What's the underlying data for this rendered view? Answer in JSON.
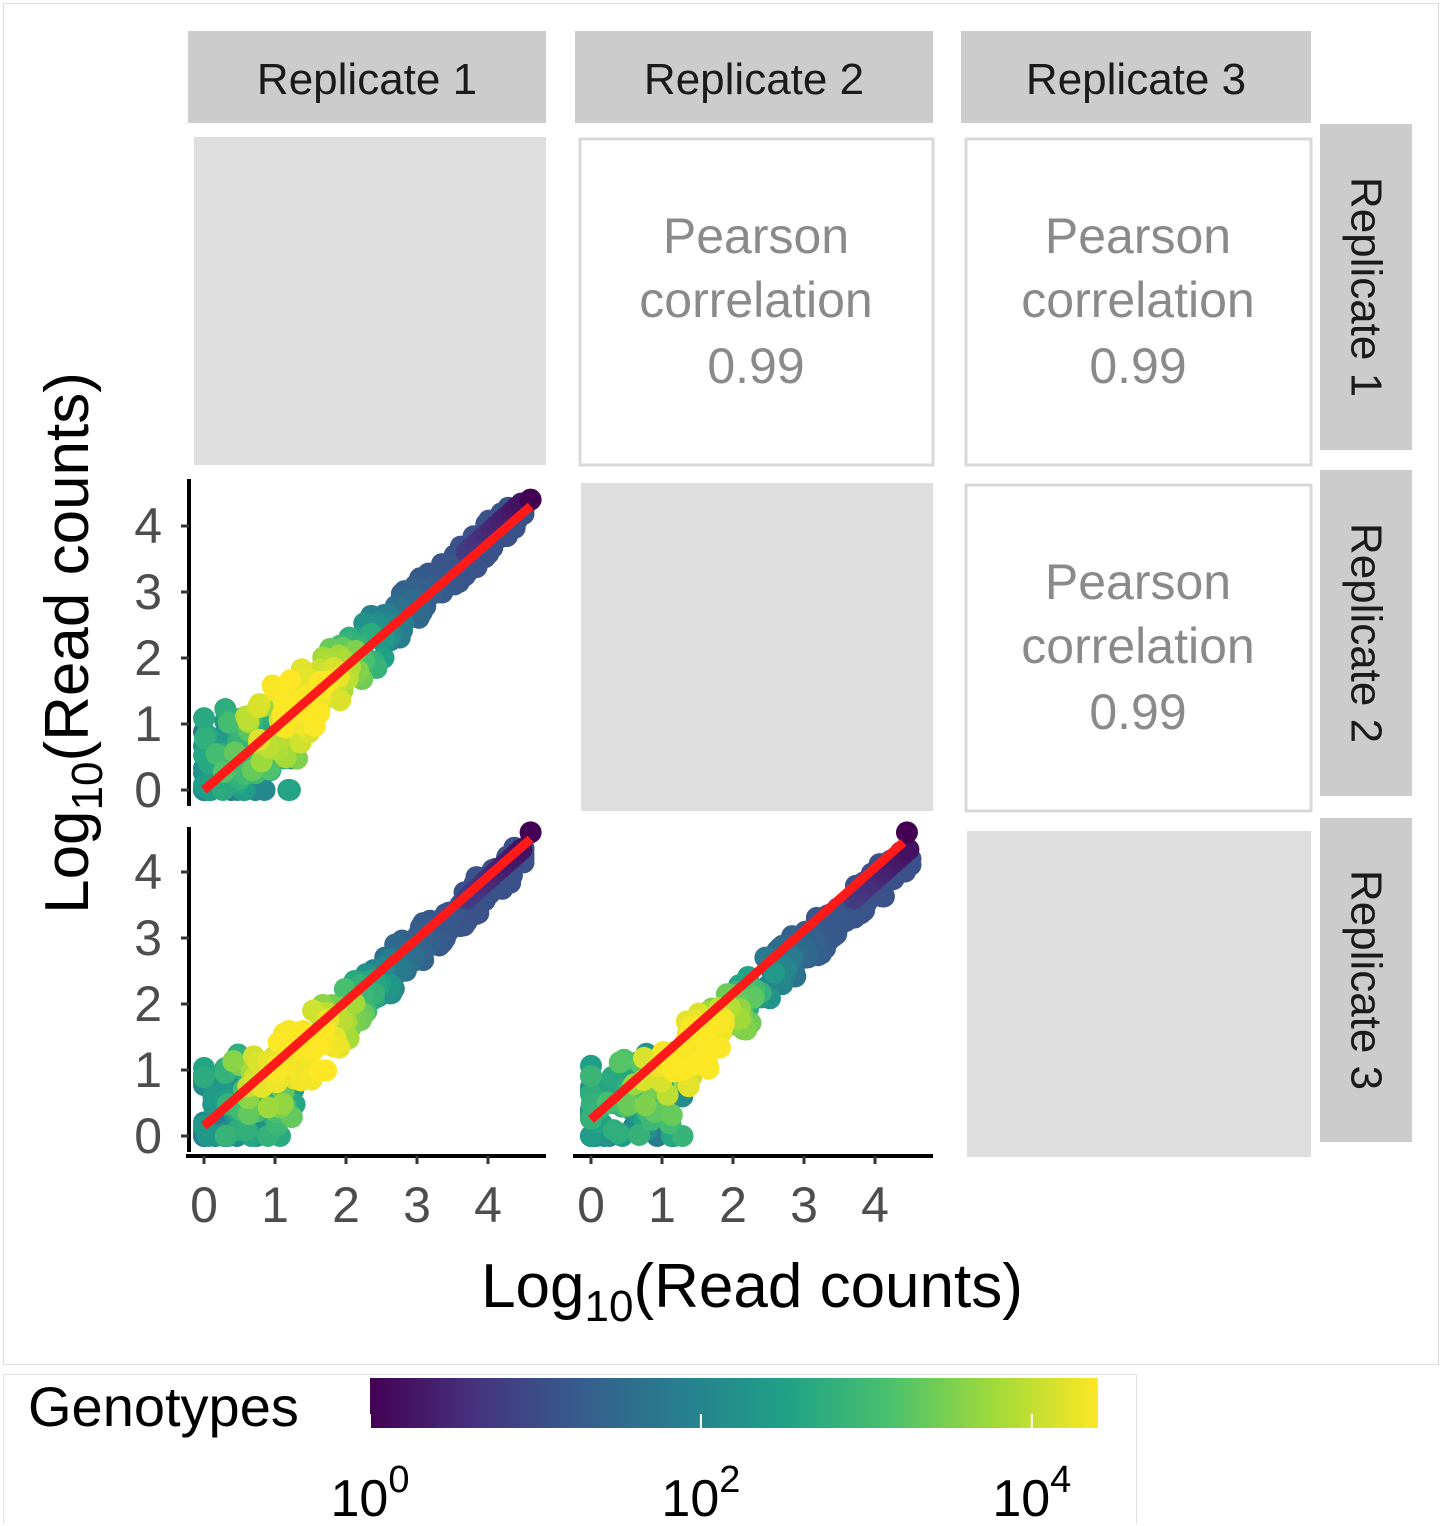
{
  "chart_data": {
    "type": "scatter",
    "layout": "pairs-matrix",
    "xlabel": "Log",
    "xlabel_sub": "10",
    "xlabel_rest": "(Read counts)",
    "ylabel": "Log",
    "ylabel_sub": "10",
    "ylabel_rest": "(Read counts)",
    "column_strips": [
      "Replicate 1",
      "Replicate 2",
      "Replicate 3"
    ],
    "row_strips": [
      "Replicate 1",
      "Replicate 2",
      "Replicate 3"
    ],
    "xlim": [
      -0.2,
      4.8
    ],
    "ylim": [
      -0.2,
      4.8
    ],
    "xticks": [
      0,
      1,
      2,
      3,
      4
    ],
    "yticks": [
      0,
      1,
      2,
      3,
      4
    ],
    "correlation_panels": [
      {
        "row": 1,
        "col": 2,
        "line1": "Pearson",
        "line2": "correlation",
        "value": "0.99"
      },
      {
        "row": 1,
        "col": 3,
        "line1": "Pearson",
        "line2": "correlation",
        "value": "0.99"
      },
      {
        "row": 2,
        "col": 3,
        "line1": "Pearson",
        "line2": "correlation",
        "value": "0.99"
      }
    ],
    "scatter_panels": [
      {
        "row": 2,
        "col": 1,
        "fit_line": {
          "x": [
            0,
            4.6
          ],
          "y": [
            0,
            4.3
          ]
        },
        "max_point": [
          4.6,
          4.4
        ]
      },
      {
        "row": 3,
        "col": 1,
        "fit_line": {
          "x": [
            0,
            4.6
          ],
          "y": [
            0.15,
            4.5
          ]
        },
        "max_point": [
          4.6,
          4.6
        ]
      },
      {
        "row": 3,
        "col": 2,
        "fit_line": {
          "x": [
            0,
            4.4
          ],
          "y": [
            0.25,
            4.45
          ]
        },
        "max_point": [
          4.45,
          4.6
        ]
      }
    ],
    "fit_line_color": "#ff1a1a",
    "colorbar": {
      "title": "Genotypes",
      "scale": "log10",
      "range": [
        0,
        4.4
      ],
      "ticks": [
        {
          "base": "10",
          "exp": "0",
          "value": 0
        },
        {
          "base": "10",
          "exp": "2",
          "value": 2
        },
        {
          "base": "10",
          "exp": "4",
          "value": 4
        }
      ],
      "colormap": "viridis",
      "colors": [
        "#440154",
        "#46327e",
        "#365c8d",
        "#277f8e",
        "#1fa187",
        "#4ac16d",
        "#a0da39",
        "#fde725"
      ]
    },
    "grid": false,
    "legend_position": "bottom-left"
  }
}
